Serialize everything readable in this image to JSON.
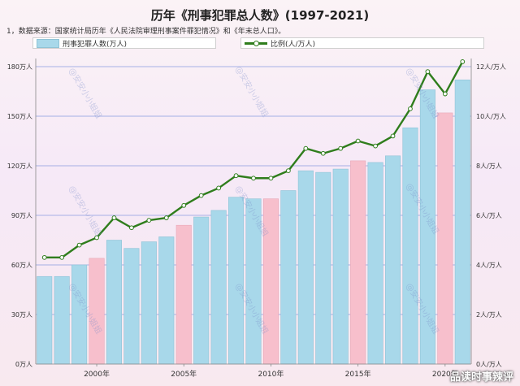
{
  "title": "历年《刑事犯罪总人数》(1997-2021)",
  "source_note": "1，数据来源：国家统计局历年《人民法院审理刑事案件罪犯情况》和《年末总人口》。",
  "watermark": "@安安小小姐姐",
  "footer_mark": "品读时事辣评",
  "chart_data": {
    "type": "bar",
    "x": [
      1997,
      1998,
      1999,
      2000,
      2001,
      2002,
      2003,
      2004,
      2005,
      2006,
      2007,
      2008,
      2009,
      2010,
      2011,
      2012,
      2013,
      2014,
      2015,
      2016,
      2017,
      2018,
      2019,
      2020,
      2021
    ],
    "highlighted_x": [
      2000,
      2005,
      2010,
      2015,
      2020
    ],
    "series": [
      {
        "name": "刑事犯罪人数(万人)",
        "type": "bar",
        "axis": "left",
        "values": [
          53,
          53,
          60,
          64,
          75,
          70,
          74,
          77,
          84,
          89,
          93,
          101,
          100,
          100,
          105,
          117,
          116,
          118,
          123,
          122,
          126,
          143,
          166,
          152,
          172
        ]
      },
      {
        "name": "比例(人/万人)",
        "type": "line",
        "axis": "right",
        "values": [
          4.3,
          4.3,
          4.8,
          5.1,
          5.9,
          5.5,
          5.8,
          5.9,
          6.4,
          6.8,
          7.1,
          7.6,
          7.5,
          7.5,
          7.8,
          8.7,
          8.5,
          8.7,
          9.0,
          8.8,
          9.2,
          10.3,
          11.8,
          10.9,
          12.2
        ]
      }
    ],
    "y_left": {
      "ylim": [
        0,
        180
      ],
      "ticks": [
        0,
        30,
        60,
        90,
        120,
        150,
        180
      ],
      "tick_labels": [
        "0万人",
        "30万人",
        "60万人",
        "90万人",
        "120万人",
        "150万人",
        "180万人"
      ]
    },
    "y_right": {
      "ylim": [
        0,
        12
      ],
      "ticks": [
        0,
        2,
        4,
        6,
        8,
        10,
        12
      ],
      "tick_labels": [
        "0人/万人",
        "2人/万人",
        "4人/万人",
        "6人/万人",
        "8人/万人",
        "10人/万人",
        "12人/万人"
      ]
    },
    "x_tick_labels": [
      "2000年",
      "2005年",
      "2010年",
      "2015年",
      "2020年"
    ],
    "legend_position": "top",
    "colors": {
      "bar": "#a8d8ea",
      "bar_highlight": "#f7bfcc",
      "line": "#2f7d1c",
      "marker_fill": "#ffffff",
      "grid_left": "#d9c9e6",
      "grid_right": "#8a9be0"
    }
  }
}
